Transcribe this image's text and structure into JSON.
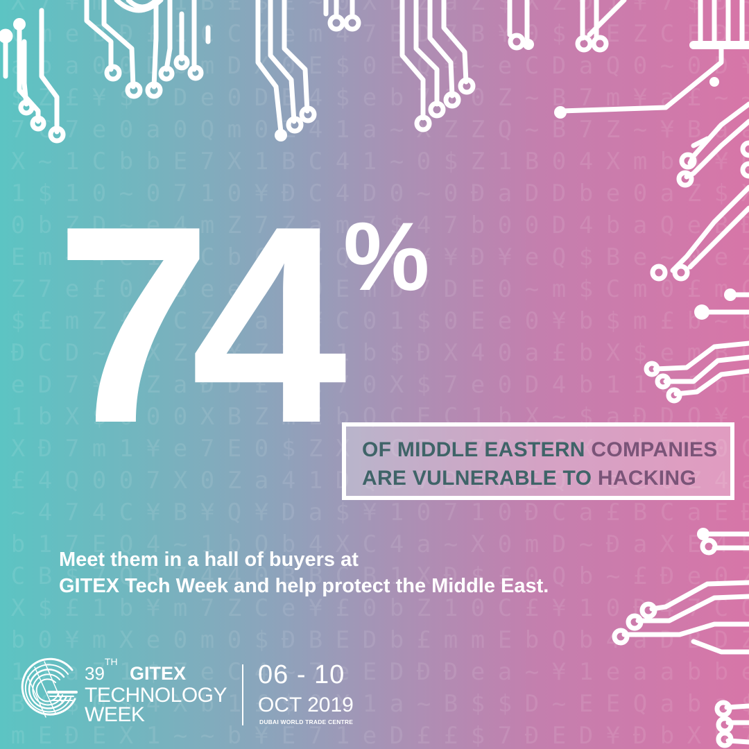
{
  "statistic": {
    "number": "74",
    "percent_sign": "%",
    "caption_line1_a": "OF MIDDLE EASTERN",
    "caption_line1_b": "COMPANIES",
    "caption_line2_a": "ARE VULNERABLE TO",
    "caption_line2_b": "HACKING"
  },
  "tagline": {
    "line1": "Meet them in a hall of buyers at",
    "line2": "GITEX Tech Week and help protect the Middle East."
  },
  "event": {
    "edition_number": "39",
    "edition_suffix": "TH",
    "brand": "GITEX",
    "name_line1": "TECHNOLOGY",
    "name_line2": "WEEK",
    "dates": "06 - 10",
    "month_year": "OCT 2019",
    "venue": "DUBAI WORLD TRADE CENTRE"
  },
  "colors": {
    "gradient_start": "#5cc4c3",
    "gradient_end": "#d776a8",
    "caption_teal": "#3f6468",
    "caption_purple": "#7a5478"
  }
}
